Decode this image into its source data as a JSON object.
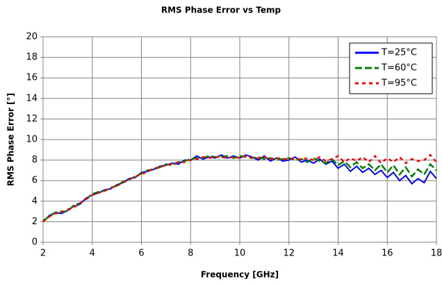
{
  "chart_data": {
    "type": "line",
    "title": "RMS Phase Error vs Temp",
    "xlabel": "Frequency [GHz]",
    "ylabel": "RMS Phase Error [°]",
    "x": [
      2,
      2.25,
      2.5,
      2.75,
      3,
      3.25,
      3.5,
      3.75,
      4,
      4.25,
      4.5,
      4.75,
      5,
      5.25,
      5.5,
      5.75,
      6,
      6.25,
      6.5,
      6.75,
      7,
      7.25,
      7.5,
      7.75,
      8,
      8.25,
      8.5,
      8.75,
      9,
      9.25,
      9.5,
      9.75,
      10,
      10.25,
      10.5,
      10.75,
      11,
      11.25,
      11.5,
      11.75,
      12,
      12.25,
      12.5,
      12.75,
      13,
      13.25,
      13.5,
      13.75,
      14,
      14.25,
      14.5,
      14.75,
      15,
      15.25,
      15.5,
      15.75,
      16,
      16.25,
      16.5,
      16.75,
      17,
      17.25,
      17.5,
      17.75,
      18
    ],
    "series": [
      {
        "name": "T=25°C",
        "color": "#0000ff",
        "linestyle": "solid",
        "values": [
          2.0,
          2.6,
          2.9,
          2.8,
          3.1,
          3.5,
          3.7,
          4.3,
          4.6,
          4.8,
          5.1,
          5.2,
          5.6,
          5.8,
          6.2,
          6.3,
          6.8,
          6.9,
          7.1,
          7.4,
          7.5,
          7.7,
          7.6,
          8.0,
          8.0,
          8.4,
          8.1,
          8.3,
          8.2,
          8.5,
          8.2,
          8.4,
          8.2,
          8.5,
          8.3,
          8.0,
          8.4,
          7.9,
          8.2,
          7.9,
          8.0,
          8.3,
          7.8,
          8.0,
          7.7,
          8.1,
          7.6,
          7.9,
          7.2,
          7.6,
          6.9,
          7.4,
          6.8,
          7.2,
          6.6,
          7.0,
          6.3,
          6.8,
          6.0,
          6.5,
          5.7,
          6.2,
          5.8,
          6.9,
          6.2
        ]
      },
      {
        "name": "T=60°C",
        "color": "#008000",
        "linestyle": "dashed",
        "values": [
          2.1,
          2.5,
          2.9,
          3.0,
          3.0,
          3.6,
          3.8,
          4.2,
          4.7,
          4.9,
          5.0,
          5.3,
          5.5,
          5.9,
          6.1,
          6.4,
          6.7,
          7.0,
          7.1,
          7.3,
          7.6,
          7.5,
          7.8,
          7.9,
          8.1,
          8.2,
          8.2,
          8.4,
          8.3,
          8.3,
          8.4,
          8.2,
          8.4,
          8.3,
          8.2,
          8.3,
          8.1,
          8.2,
          8.0,
          8.1,
          8.2,
          8.0,
          8.1,
          7.8,
          8.2,
          7.9,
          7.7,
          8.1,
          7.5,
          7.9,
          7.3,
          7.8,
          7.2,
          7.6,
          7.0,
          7.6,
          6.8,
          7.5,
          6.6,
          7.3,
          6.4,
          7.1,
          6.6,
          7.6,
          7.0
        ]
      },
      {
        "name": "T=95°C",
        "color": "#ff0000",
        "linestyle": "dotted",
        "values": [
          2.0,
          2.5,
          2.8,
          2.9,
          3.2,
          3.4,
          3.8,
          4.2,
          4.6,
          4.8,
          5.0,
          5.3,
          5.5,
          5.8,
          6.1,
          6.4,
          6.6,
          6.9,
          7.2,
          7.3,
          7.5,
          7.6,
          7.8,
          7.8,
          8.0,
          8.1,
          8.3,
          8.2,
          8.3,
          8.3,
          8.2,
          8.3,
          8.2,
          8.4,
          8.2,
          8.2,
          8.3,
          8.1,
          8.2,
          8.1,
          8.1,
          8.2,
          8.0,
          8.2,
          8.0,
          8.3,
          7.9,
          8.1,
          8.4,
          7.8,
          8.2,
          7.9,
          8.3,
          7.8,
          8.4,
          7.7,
          8.2,
          7.8,
          8.3,
          7.7,
          8.1,
          7.9,
          8.0,
          8.5,
          7.8
        ]
      }
    ],
    "xlim": [
      2,
      18
    ],
    "xticks": [
      2,
      4,
      6,
      8,
      10,
      12,
      14,
      16,
      18
    ],
    "ylim": [
      0,
      20
    ],
    "yticks": [
      0,
      2,
      4,
      6,
      8,
      10,
      12,
      14,
      16,
      18,
      20
    ],
    "grid": true,
    "legend": "upper right"
  }
}
